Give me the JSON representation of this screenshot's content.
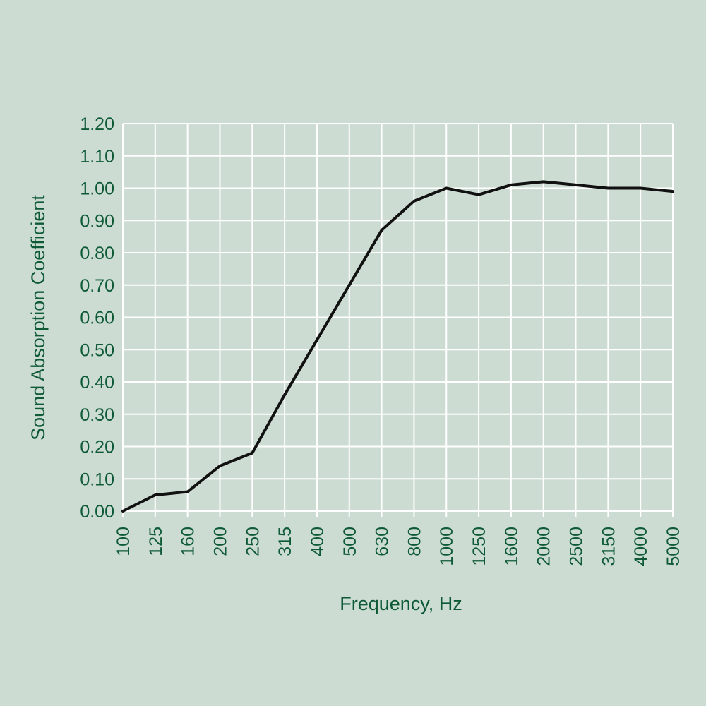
{
  "chart_data": {
    "type": "line",
    "title": "",
    "xlabel": "Frequency, Hz",
    "ylabel": "Sound Absorption Coefficient",
    "categories": [
      "100",
      "125",
      "160",
      "200",
      "250",
      "315",
      "400",
      "500",
      "630",
      "800",
      "1000",
      "1250",
      "1600",
      "2000",
      "2500",
      "3150",
      "4000",
      "5000"
    ],
    "y_ticks": [
      "0.00",
      "0.10",
      "0.20",
      "0.30",
      "0.40",
      "0.50",
      "0.60",
      "0.70",
      "0.80",
      "0.90",
      "1.00",
      "1.10",
      "1.20"
    ],
    "ylim": [
      0,
      1.2
    ],
    "grid": true,
    "series": [
      {
        "values": [
          0.0,
          0.05,
          0.06,
          0.14,
          0.18,
          0.36,
          0.53,
          0.7,
          0.87,
          0.96,
          1.0,
          0.98,
          1.01,
          1.02,
          1.01,
          1.0,
          1.0,
          0.99
        ]
      }
    ],
    "colors": {
      "background": "#cddcd2",
      "grid": "#ffffff",
      "line": "#111111",
      "text": "#0e5a37"
    }
  }
}
